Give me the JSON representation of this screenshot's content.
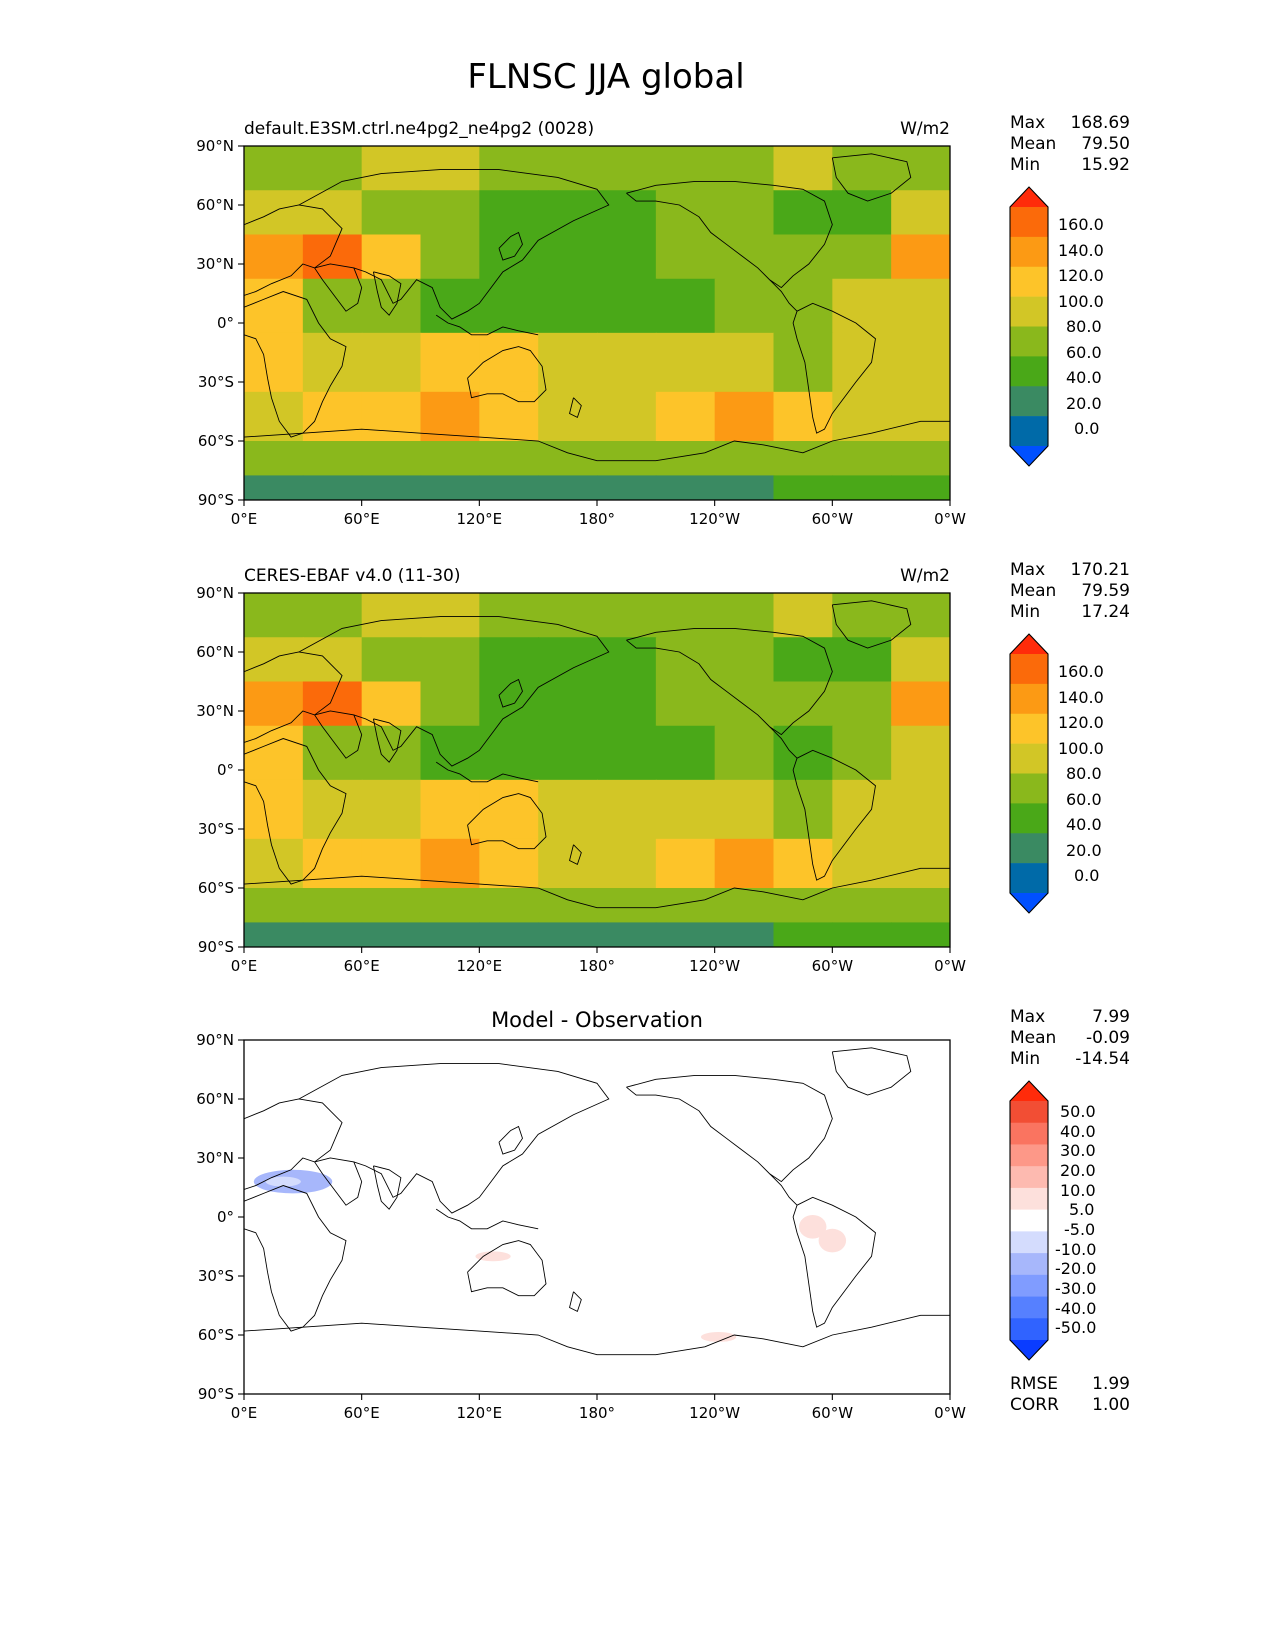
{
  "figure": {
    "title": "FLNSC JJA global"
  },
  "colors": {
    "abs_levels": [
      "#0050ff",
      "#006aa8",
      "#3a8a62",
      "#4aa818",
      "#8ab81c",
      "#d2c626",
      "#fdc429",
      "#fc9a14",
      "#fb6a0a",
      "#ff2b0a"
    ],
    "diff_levels": [
      "#0a3cff",
      "#3063ff",
      "#5680ff",
      "#809cff",
      "#a7b7fb",
      "#d4dcfd",
      "#ffffff",
      "#fde0dc",
      "#fdbab0",
      "#fd9888",
      "#fa7460",
      "#f24e34",
      "#ff2b0a"
    ],
    "coastline": "#000000"
  },
  "axes": {
    "lat_ticks": [
      "90°N",
      "60°N",
      "30°N",
      "0°",
      "30°S",
      "60°S",
      "90°S"
    ],
    "lon_ticks": [
      "0°E",
      "60°E",
      "120°E",
      "180°",
      "120°W",
      "60°W",
      "0°W"
    ]
  },
  "panels": [
    {
      "title_left": "default.E3SM.ctrl.ne4pg2_ne4pg2 (0028)",
      "title_center": "",
      "units": "W/m2",
      "stats": [
        {
          "label": "Max",
          "value": "168.69"
        },
        {
          "label": "Mean",
          "value": "79.50"
        },
        {
          "label": "Min",
          "value": "15.92"
        }
      ],
      "colorbar_labels": [
        "160.0",
        "140.0",
        "120.0",
        "100.0",
        "80.0",
        "60.0",
        "40.0",
        "20.0",
        "0.0"
      ],
      "metrics": []
    },
    {
      "title_left": "CERES-EBAF v4.0 (11-30)",
      "title_center": "",
      "units": "W/m2",
      "stats": [
        {
          "label": "Max",
          "value": "170.21"
        },
        {
          "label": "Mean",
          "value": "79.59"
        },
        {
          "label": "Min",
          "value": "17.24"
        }
      ],
      "colorbar_labels": [
        "160.0",
        "140.0",
        "120.0",
        "100.0",
        "80.0",
        "60.0",
        "40.0",
        "20.0",
        "0.0"
      ],
      "metrics": []
    },
    {
      "title_left": "",
      "title_center": "Model - Observation",
      "units": "",
      "stats": [
        {
          "label": "Max",
          "value": "7.99"
        },
        {
          "label": "Mean",
          "value": "-0.09"
        },
        {
          "label": "Min",
          "value": "-14.54"
        }
      ],
      "colorbar_labels": [
        "50.0",
        "40.0",
        "30.0",
        "20.0",
        "10.0",
        "5.0",
        "-5.0",
        "-10.0",
        "-20.0",
        "-30.0",
        "-40.0",
        "-50.0"
      ],
      "metrics": [
        {
          "label": "RMSE",
          "value": "1.99"
        },
        {
          "label": "CORR",
          "value": "1.00"
        }
      ]
    }
  ],
  "chart_data": [
    {
      "type": "heatmap",
      "title": "default.E3SM.ctrl.ne4pg2_ne4pg2 (0028)",
      "units": "W/m2",
      "xlim": [
        0,
        360
      ],
      "ylim": [
        -90,
        90
      ],
      "levels": [
        0,
        20,
        40,
        60,
        80,
        100,
        120,
        140,
        160
      ],
      "extend": "both",
      "stats": {
        "max": 168.69,
        "mean": 79.5,
        "min": 15.92
      },
      "field": {
        "lat": [
          80,
          55,
          35,
          10,
          -20,
          -50,
          -70,
          -85
        ],
        "lon": [
          15,
          45,
          75,
          105,
          135,
          165,
          195,
          225,
          255,
          285,
          315,
          345
        ],
        "values": [
          [
            75,
            70,
            80,
            82,
            75,
            68,
            70,
            72,
            75,
            80,
            78,
            65
          ],
          [
            80,
            85,
            75,
            60,
            40,
            45,
            58,
            65,
            70,
            55,
            50,
            80
          ],
          [
            120,
            145,
            115,
            65,
            55,
            55,
            55,
            60,
            65,
            70,
            65,
            120
          ],
          [
            100,
            75,
            60,
            55,
            55,
            50,
            50,
            55,
            65,
            60,
            80,
            85
          ],
          [
            105,
            90,
            90,
            105,
            100,
            90,
            85,
            85,
            90,
            75,
            85,
            90
          ],
          [
            95,
            110,
            105,
            120,
            105,
            90,
            90,
            110,
            125,
            110,
            95,
            95
          ],
          [
            60,
            60,
            60,
            60,
            60,
            60,
            60,
            60,
            60,
            60,
            60,
            60
          ],
          [
            30,
            30,
            30,
            30,
            30,
            30,
            30,
            30,
            30,
            45,
            50,
            50
          ]
        ]
      }
    },
    {
      "type": "heatmap",
      "title": "CERES-EBAF v4.0 (11-30)",
      "units": "W/m2",
      "xlim": [
        0,
        360
      ],
      "ylim": [
        -90,
        90
      ],
      "levels": [
        0,
        20,
        40,
        60,
        80,
        100,
        120,
        140,
        160
      ],
      "extend": "both",
      "stats": {
        "max": 170.21,
        "mean": 79.59,
        "min": 17.24
      },
      "field": {
        "lat": [
          80,
          55,
          35,
          10,
          -20,
          -50,
          -70,
          -85
        ],
        "lon": [
          15,
          45,
          75,
          105,
          135,
          165,
          195,
          225,
          255,
          285,
          315,
          345
        ],
        "values": [
          [
            75,
            70,
            80,
            82,
            75,
            68,
            70,
            72,
            75,
            80,
            78,
            65
          ],
          [
            80,
            85,
            75,
            60,
            40,
            45,
            58,
            65,
            70,
            55,
            50,
            80
          ],
          [
            125,
            150,
            118,
            65,
            55,
            55,
            55,
            60,
            65,
            70,
            65,
            120
          ],
          [
            100,
            75,
            60,
            55,
            55,
            50,
            50,
            55,
            65,
            58,
            78,
            85
          ],
          [
            105,
            90,
            90,
            105,
            100,
            90,
            85,
            85,
            90,
            75,
            85,
            90
          ],
          [
            95,
            110,
            105,
            120,
            105,
            90,
            90,
            112,
            125,
            110,
            95,
            95
          ],
          [
            60,
            60,
            60,
            60,
            60,
            60,
            60,
            60,
            60,
            60,
            60,
            60
          ],
          [
            30,
            30,
            30,
            30,
            30,
            30,
            30,
            30,
            30,
            45,
            50,
            50
          ]
        ]
      }
    },
    {
      "type": "heatmap",
      "title": "Model - Observation",
      "xlim": [
        0,
        360
      ],
      "ylim": [
        -90,
        90
      ],
      "levels": [
        -50,
        -40,
        -30,
        -20,
        -10,
        -5,
        5,
        10,
        20,
        30,
        40,
        50
      ],
      "extend": "both",
      "stats": {
        "max": 7.99,
        "mean": -0.09,
        "min": -14.54
      },
      "metrics": {
        "rmse": 1.99,
        "corr": 1.0
      },
      "features": [
        {
          "lat": 18,
          "lon": 25,
          "value": -12
        },
        {
          "lat": 18,
          "lon": 20,
          "value": -7
        },
        {
          "lat": -5,
          "lon": 290,
          "value": 7
        },
        {
          "lat": -12,
          "lon": 300,
          "value": 6
        },
        {
          "lat": -61,
          "lon": 242,
          "value": 6
        },
        {
          "lat": -20,
          "lon": 127,
          "value": 6
        }
      ]
    }
  ]
}
